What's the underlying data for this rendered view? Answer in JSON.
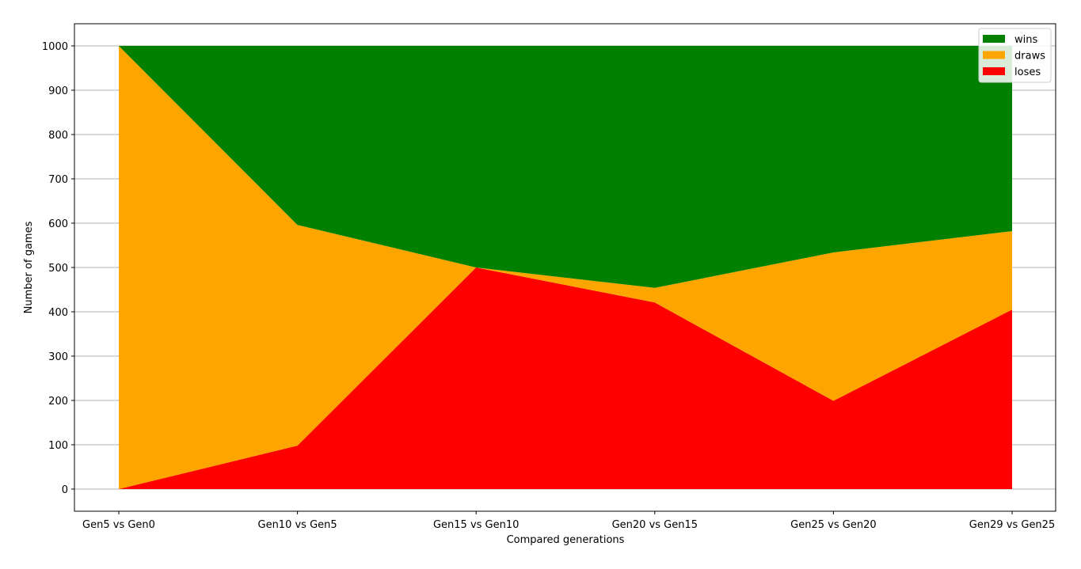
{
  "chart_data": {
    "type": "area",
    "stacked": true,
    "title": "",
    "xlabel": "Compared generations",
    "ylabel": "Number of games",
    "categories": [
      "Gen5 vs Gen0",
      "Gen10 vs Gen5",
      "Gen15 vs Gen10",
      "Gen20 vs Gen15",
      "Gen25 vs Gen20",
      "Gen29 vs Gen25"
    ],
    "series": [
      {
        "name": "loses",
        "color": "#ff0000",
        "values": [
          0,
          98,
          500,
          421,
          199,
          405
        ]
      },
      {
        "name": "draws",
        "color": "#ffa500",
        "values": [
          1000,
          498,
          0,
          33,
          335,
          177
        ]
      },
      {
        "name": "wins",
        "color": "#008000",
        "values": [
          0,
          404,
          500,
          546,
          466,
          418
        ]
      }
    ],
    "legend_order": [
      "wins",
      "draws",
      "loses"
    ],
    "ylim": [
      -50,
      1050
    ],
    "yticks": [
      0,
      100,
      200,
      300,
      400,
      500,
      600,
      700,
      800,
      900,
      1000
    ],
    "grid": "horizontal",
    "legend_position": "top-right"
  }
}
